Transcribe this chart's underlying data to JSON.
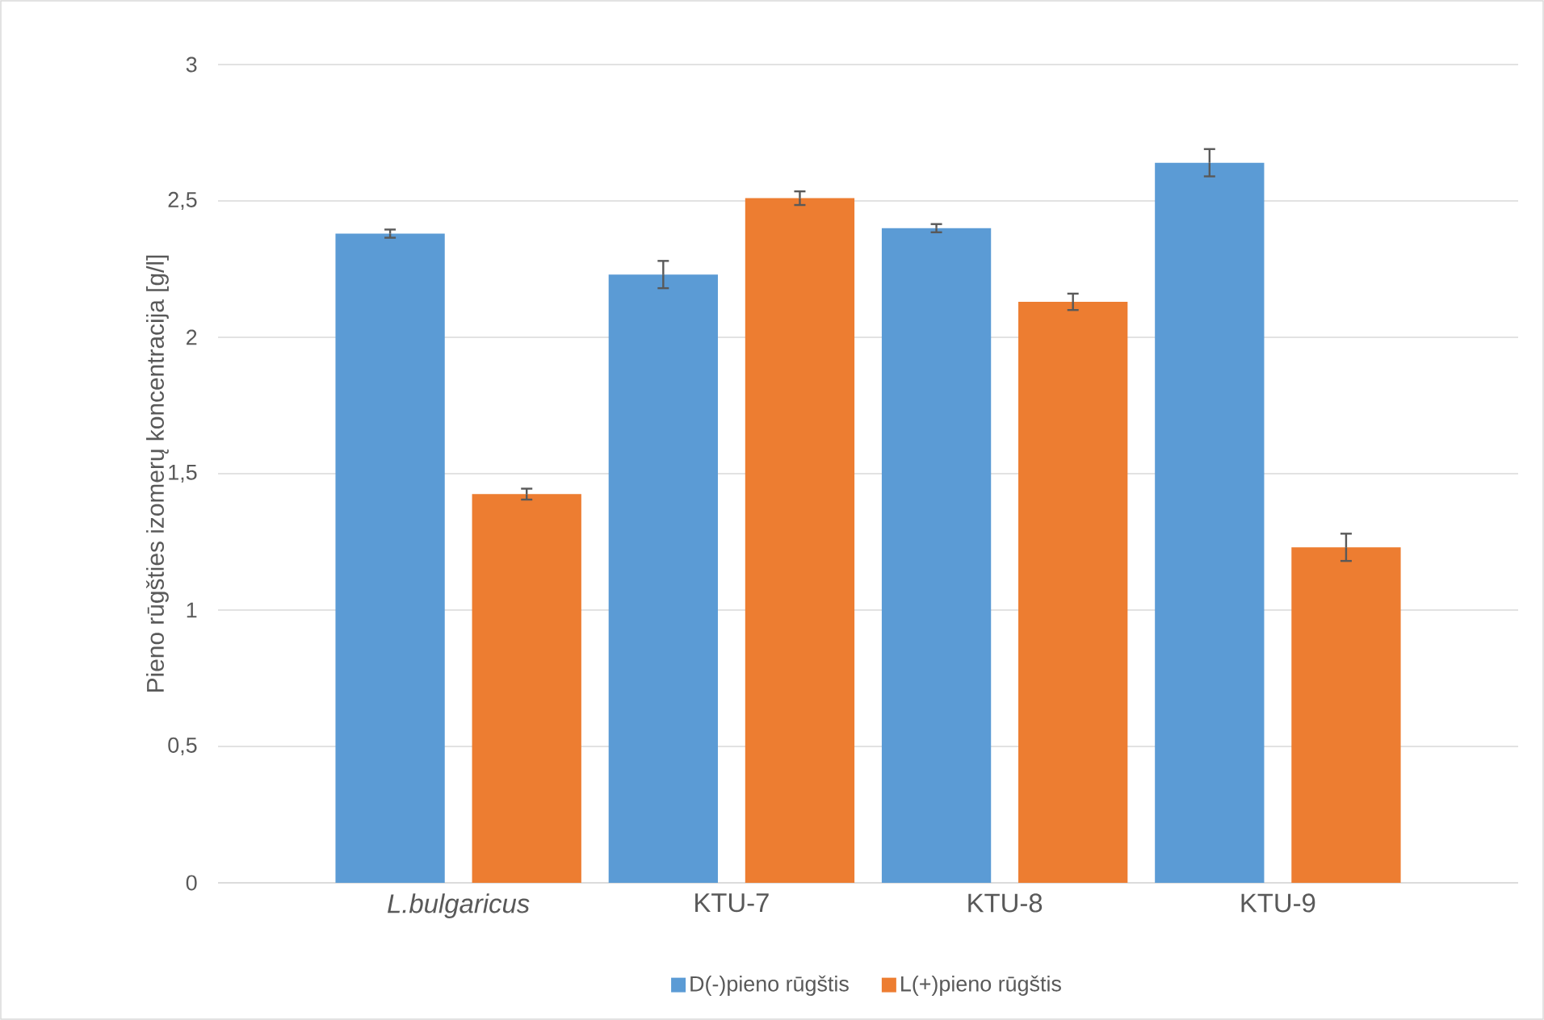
{
  "chart_data": {
    "type": "bar",
    "ylabel": "Pieno rūgšties izomerų koncentracija [g/l]",
    "categories": [
      "*L.bulgaricus*",
      "KTU-7",
      "KTU-8",
      "KTU-9"
    ],
    "series": [
      {
        "name": "D(-)pieno rūgštis",
        "color": "#5b9bd5",
        "values": [
          2.38,
          2.23,
          2.4,
          2.64
        ],
        "errors": [
          0.015,
          0.05,
          0.015,
          0.05
        ]
      },
      {
        "name": "L(+)pieno rūgštis",
        "color": "#ed7d31",
        "values": [
          1.425,
          2.51,
          2.13,
          1.23
        ],
        "errors": [
          0.02,
          0.025,
          0.03,
          0.05
        ]
      }
    ],
    "ylim": [
      0,
      3
    ],
    "yticks": [
      0,
      {
        "value": 0.5,
        "label": "0,5"
      },
      1,
      {
        "value": 1.5,
        "label": "1,5"
      },
      2,
      {
        "value": 2.5,
        "label": "2,5"
      },
      3
    ],
    "grid": "y",
    "legend": "bottom"
  }
}
